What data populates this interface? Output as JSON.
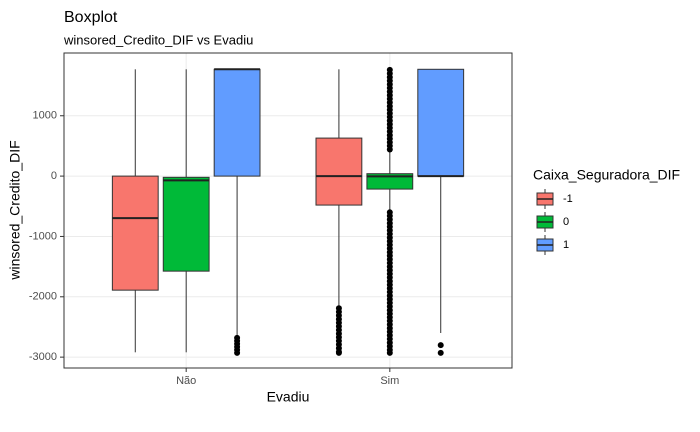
{
  "chart_data": {
    "type": "boxplot",
    "title": "Boxplot",
    "subtitle": "winsored_Credito_DIF vs Evadiu",
    "x_label": "Evadiu",
    "y_label": "winsored_Credito_DIF",
    "legend_title": "Caixa_Seguradora_DIF",
    "categories": [
      "Não",
      "Sim"
    ],
    "ylim": [
      -3180,
      2040
    ],
    "yticks": [
      -3000,
      -2000,
      -1000,
      0,
      1000
    ],
    "grid": true,
    "series": [
      {
        "name": "-1",
        "color": "#F8766D",
        "boxes": [
          {
            "min": -2920,
            "q1": -1890,
            "median": -697,
            "q3": 0,
            "max": 1770,
            "outliers": []
          },
          {
            "min": -2190,
            "q1": -480,
            "median": 0,
            "q3": 630,
            "max": 1770,
            "outliers": [
              -2190,
              -2250,
              -2310,
              -2370,
              -2430,
              -2490,
              -2550,
              -2610,
              -2670,
              -2730,
              -2790,
              -2850,
              -2910,
              -2930
            ]
          }
        ]
      },
      {
        "name": "0",
        "color": "#00BA38",
        "boxes": [
          {
            "min": -2920,
            "q1": -1575,
            "median": -70,
            "q3": -20,
            "max": 1770,
            "outliers": []
          },
          {
            "min": -560,
            "q1": -215,
            "median": -5,
            "q3": 40,
            "max": 400,
            "outliers": [
              440,
              500,
              560,
              620,
              680,
              740,
              800,
              860,
              920,
              980,
              1040,
              1100,
              1160,
              1220,
              1280,
              1340,
              1400,
              1460,
              1520,
              1580,
              1640,
              1700,
              1760,
              -600,
              -660,
              -720,
              -780,
              -840,
              -900,
              -960,
              -1020,
              -1080,
              -1140,
              -1200,
              -1260,
              -1320,
              -1380,
              -1440,
              -1500,
              -1560,
              -1620,
              -1680,
              -1740,
              -1800,
              -1860,
              -1920,
              -1980,
              -2040,
              -2100,
              -2160,
              -2220,
              -2280,
              -2340,
              -2400,
              -2460,
              -2520,
              -2580,
              -2640,
              -2700,
              -2760,
              -2820,
              -2880,
              -2930
            ]
          }
        ]
      },
      {
        "name": "1",
        "color": "#619CFF",
        "boxes": [
          {
            "min": -2650,
            "q1": 0,
            "median": 1770,
            "q3": 1770,
            "max": 1770,
            "outliers": [
              -2680,
              -2730,
              -2780,
              -2830,
              -2880,
              -2930
            ]
          },
          {
            "min": -2600,
            "q1": 0,
            "median": 0,
            "q3": 1770,
            "max": 1770,
            "outliers": [
              -2800,
              -2930
            ]
          }
        ]
      }
    ]
  }
}
